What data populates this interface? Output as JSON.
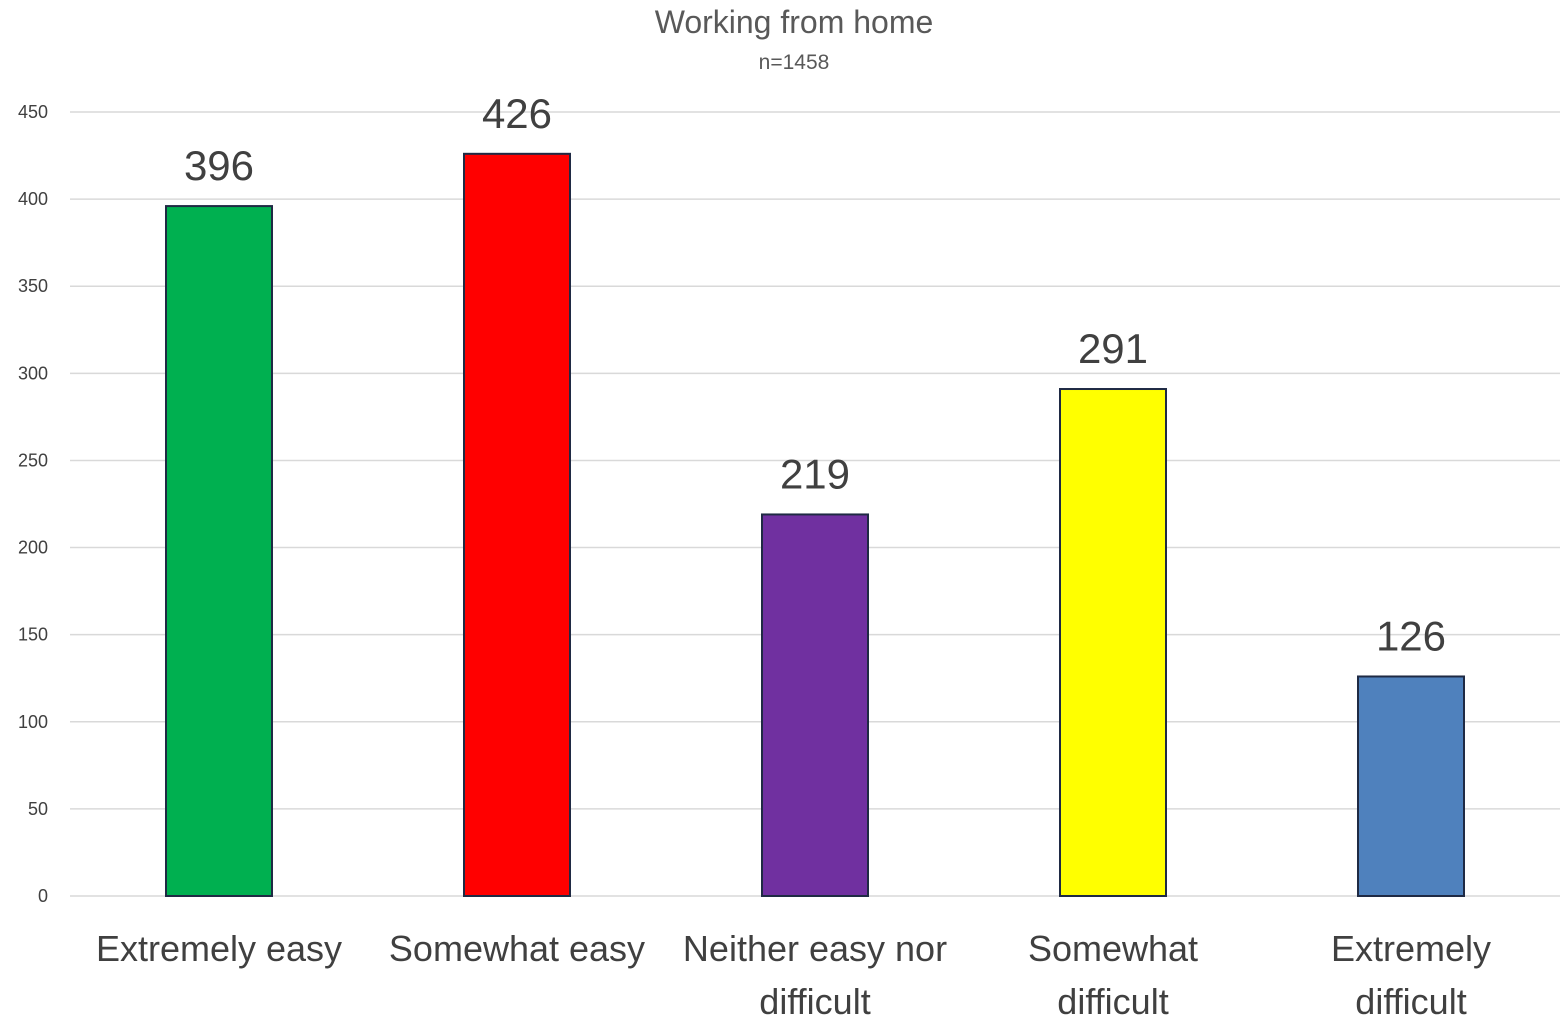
{
  "chart_data": {
    "type": "bar",
    "title": "Working from home",
    "subtitle": "n=1458",
    "categories": [
      "Extremely easy",
      "Somewhat easy",
      "Neither easy nor difficult",
      "Somewhat difficult",
      "Extremely difficult"
    ],
    "category_lines": [
      [
        "Extremely easy"
      ],
      [
        "Somewhat easy"
      ],
      [
        "Neither easy nor",
        "difficult"
      ],
      [
        "Somewhat",
        "difficult"
      ],
      [
        "Extremely",
        "difficult"
      ]
    ],
    "values": [
      396,
      426,
      219,
      291,
      126
    ],
    "data_labels": [
      "396",
      "426",
      "219",
      "291",
      "126"
    ],
    "colors": [
      "#00b050",
      "#ff0000",
      "#7030a0",
      "#ffff00",
      "#4f81bd"
    ],
    "ylim": [
      0,
      450
    ],
    "yticks": [
      0,
      50,
      100,
      150,
      200,
      250,
      300,
      350,
      400,
      450
    ],
    "xlabel": "",
    "ylabel": "",
    "grid": true,
    "legend": "none"
  }
}
